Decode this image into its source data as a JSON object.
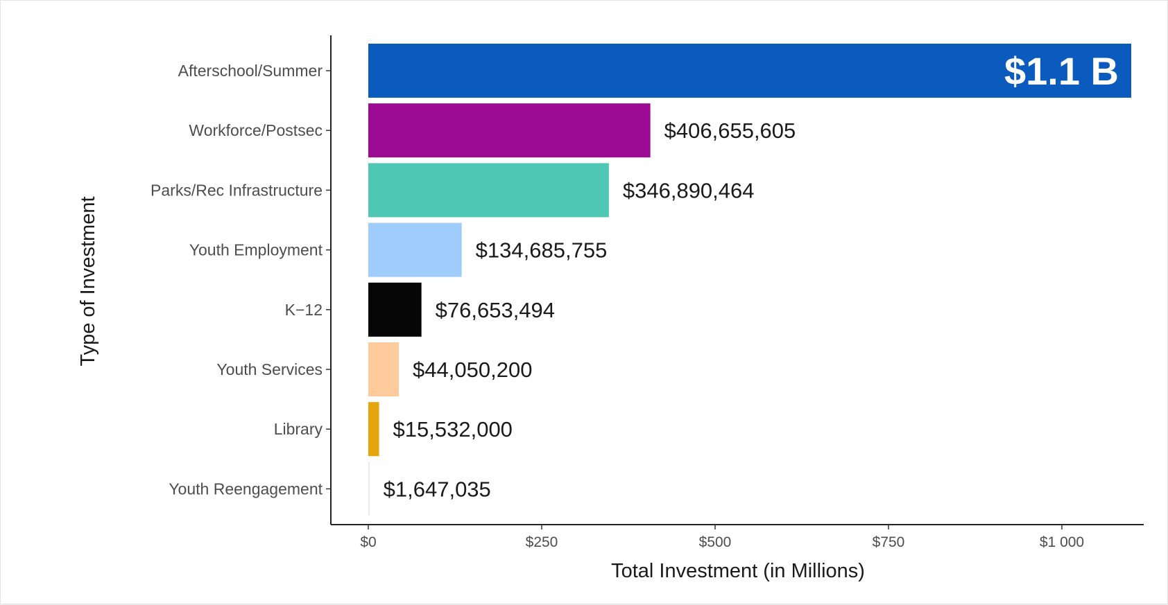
{
  "chart_data": {
    "type": "bar",
    "orientation": "horizontal",
    "title": "",
    "xlabel": "Total Investment (in Millions)",
    "ylabel": "Type of Investment",
    "categories": [
      "Afterschool/Summer",
      "Workforce/Postsec",
      "Parks/Rec Infrastructure",
      "Youth Employment",
      "K−12",
      "Youth Services",
      "Library",
      "Youth Reengagement"
    ],
    "values": [
      1100,
      406.655605,
      346.890464,
      134.685755,
      76.653494,
      44.0502,
      15.532,
      1.647035
    ],
    "value_labels": [
      "$1.1 B",
      "$406,655,605",
      "$346,890,464",
      "$134,685,755",
      "$76,653,494",
      "$44,050,200",
      "$15,532,000",
      "$1,647,035"
    ],
    "colors": [
      "#0b5bbf",
      "#9c0a94",
      "#4ec8b4",
      "#9ecdfc",
      "#060606",
      "#fdcb9b",
      "#e6a50c",
      "#e6e6e6"
    ],
    "xlim": [
      0,
      1100
    ],
    "xticks": [
      0,
      250,
      500,
      750,
      1000
    ],
    "xtick_labels": [
      "$0",
      "$250",
      "$500",
      "$750",
      "$1 000"
    ],
    "grid": false,
    "legend": "none"
  }
}
